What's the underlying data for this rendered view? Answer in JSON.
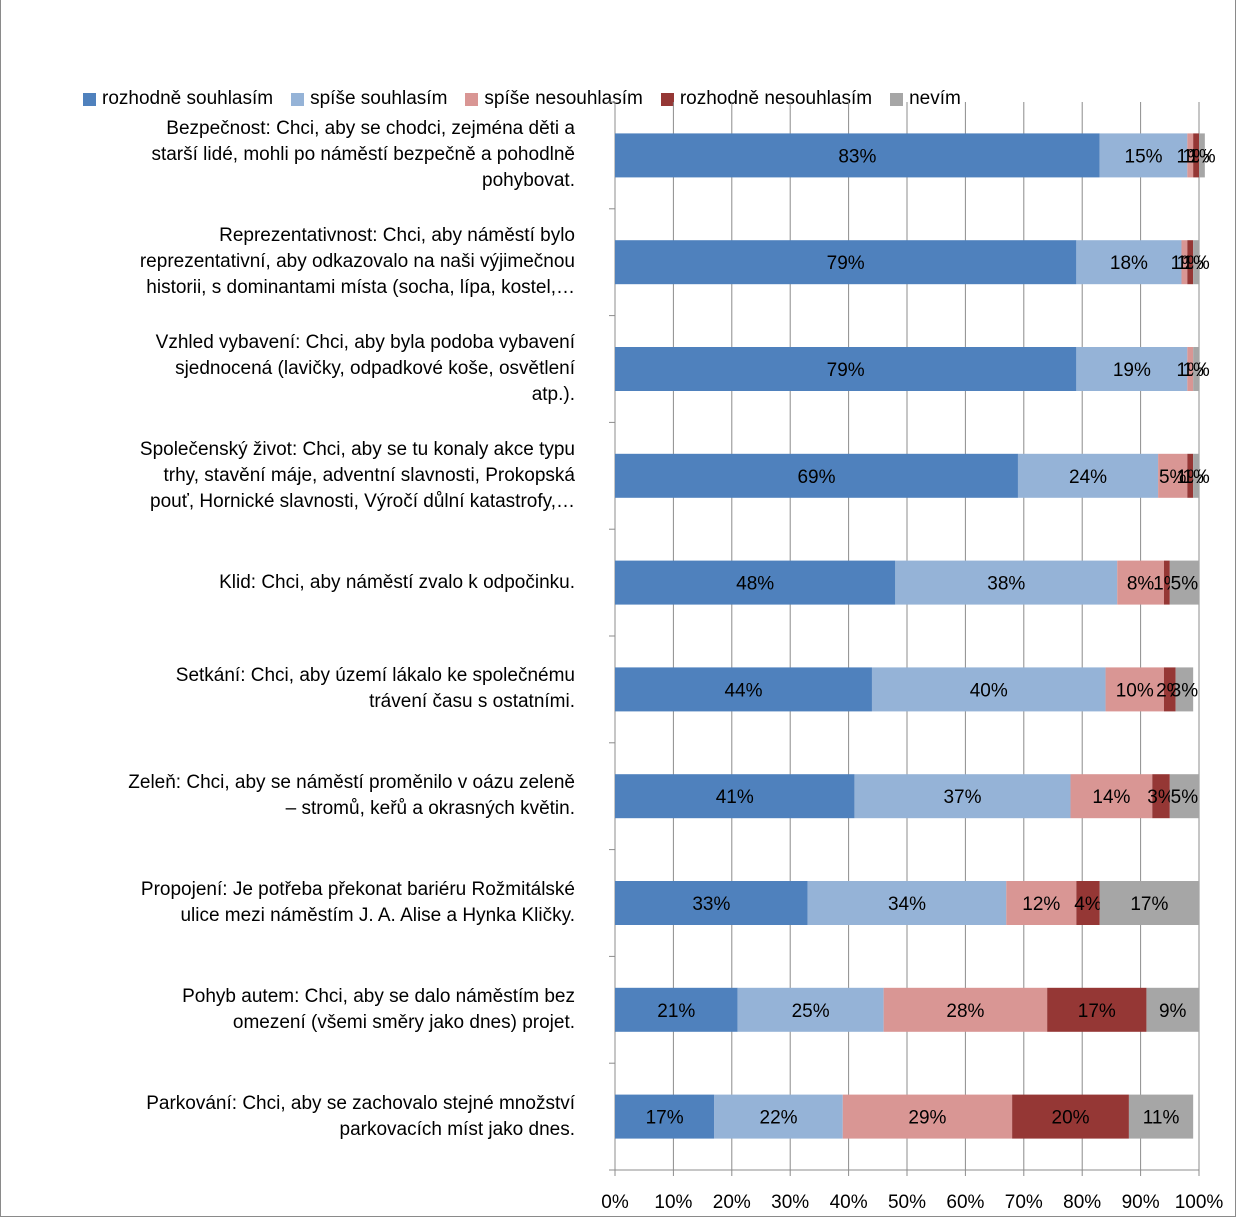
{
  "chart_data": {
    "type": "bar",
    "orientation": "horizontal",
    "stacked": "100%",
    "title": "",
    "xlim": [
      0,
      100
    ],
    "x_ticks": [
      "0%",
      "10%",
      "20%",
      "30%",
      "40%",
      "50%",
      "60%",
      "70%",
      "80%",
      "90%",
      "100%"
    ],
    "gridlines": "vertical",
    "legend_position": "top",
    "categories": [
      "Bezpečnost: Chci, aby se chodci, zejména děti a starší lidé, mohli po náměstí bezpečně a pohodlně pohybovat.",
      "Reprezentativnost: Chci, aby náměstí bylo reprezentativní, aby odkazovalo na naši výjimečnou historii, s dominantami místa (socha, lípa, kostel,…",
      "Vzhled vybavení: Chci, aby byla podoba vybavení sjednocená (lavičky, odpadkové koše, osvětlení atp.).",
      "Společenský život: Chci, aby se tu konaly akce typu trhy, stavění máje, adventní slavnosti, Prokopská pouť, Hornické slavnosti, Výročí důlní katastrofy,…",
      "Klid: Chci, aby náměstí zvalo k odpočinku.",
      "Setkání: Chci, aby území lákalo ke společnému trávení času s ostatními.",
      "Zeleň: Chci, aby se náměstí proměnilo v oázu zeleně – stromů, keřů a okrasných květin.",
      "Propojení: Je potřeba překonat bariéru Rožmitálské ulice mezi náměstím J. A. Alise a Hynka Kličky.",
      "Pohyb autem: Chci, aby se dalo náměstím bez omezení (všemi směry jako dnes) projet.",
      "Parkování: Chci, aby se zachovalo stejné množství parkovacích míst jako dnes."
    ],
    "category_lines": [
      [
        "Bezpečnost: Chci, aby se chodci, zejména děti a",
        "starší lidé, mohli po náměstí bezpečně a pohodlně",
        "pohybovat."
      ],
      [
        "Reprezentativnost: Chci, aby náměstí bylo",
        "reprezentativní, aby odkazovalo na naši výjimečnou",
        "historii, s dominantami místa (socha, lípa, kostel,…"
      ],
      [
        "Vzhled vybavení: Chci, aby byla podoba vybavení",
        "sjednocená (lavičky, odpadkové koše, osvětlení",
        "atp.)."
      ],
      [
        "Společenský život: Chci, aby se tu konaly akce typu",
        "trhy, stavění máje, adventní slavnosti, Prokopská",
        "pouť, Hornické slavnosti, Výročí důlní katastrofy,…"
      ],
      [
        "Klid: Chci, aby náměstí zvalo k odpočinku."
      ],
      [
        "Setkání: Chci, aby území lákalo ke společnému",
        "trávení času s ostatními."
      ],
      [
        "Zeleň: Chci, aby se náměstí proměnilo v oázu zeleně",
        "– stromů, keřů a okrasných květin."
      ],
      [
        "Propojení: Je potřeba překonat bariéru Rožmitálské",
        "ulice mezi náměstím J. A. Alise a Hynka Kličky."
      ],
      [
        "Pohyb autem: Chci, aby se dalo náměstím bez",
        "omezení (všemi směry jako dnes) projet."
      ],
      [
        "Parkování: Chci, aby se zachovalo stejné množství",
        "parkovacích míst jako dnes."
      ]
    ],
    "series": [
      {
        "name": "rozhodně souhlasím",
        "color": "#4F81BD",
        "values": [
          83,
          79,
          79,
          69,
          48,
          44,
          41,
          33,
          21,
          17
        ]
      },
      {
        "name": "spíše  souhlasím",
        "color": "#95B3D7",
        "values": [
          15,
          18,
          19,
          24,
          38,
          40,
          37,
          34,
          25,
          22
        ]
      },
      {
        "name": "spíše nesouhlasím",
        "color": "#D99694",
        "values": [
          1,
          1,
          1,
          5,
          8,
          10,
          14,
          12,
          28,
          29
        ]
      },
      {
        "name": "rozhodně nesouhlasím",
        "color": "#953735",
        "values": [
          1,
          1,
          0,
          1,
          1,
          2,
          3,
          4,
          17,
          20
        ]
      },
      {
        "name": "nevím",
        "color": "#A6A6A6",
        "values": [
          1,
          1,
          1,
          1,
          5,
          3,
          5,
          17,
          9,
          11
        ]
      }
    ]
  }
}
